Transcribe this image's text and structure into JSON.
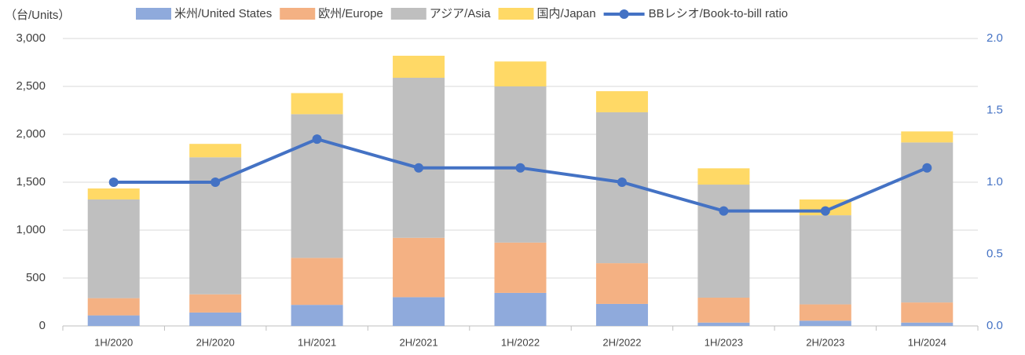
{
  "chart_data": {
    "type": "bar",
    "stacked": true,
    "y_label": "（台/Units）",
    "categories": [
      "1H/2020",
      "2H/2020",
      "1H/2021",
      "2H/2021",
      "1H/2022",
      "2H/2022",
      "1H/2023",
      "2H/2023",
      "1H/2024"
    ],
    "series": [
      {
        "name": "米州/United States",
        "color": "#8faadc",
        "values": [
          110,
          140,
          220,
          300,
          345,
          230,
          35,
          55,
          35
        ]
      },
      {
        "name": "欧州/Europe",
        "color": "#f4b183",
        "values": [
          180,
          190,
          490,
          620,
          525,
          425,
          260,
          170,
          210
        ]
      },
      {
        "name": "アジア/Asia",
        "color": "#bfbfbf",
        "values": [
          1030,
          1430,
          1500,
          1670,
          1630,
          1575,
          1180,
          930,
          1670
        ]
      },
      {
        "name": "国内/Japan",
        "color": "#ffd966",
        "values": [
          115,
          140,
          220,
          230,
          260,
          220,
          170,
          165,
          115
        ]
      },
      {
        "name": "BBレシオ/Book-to-bill ratio",
        "color": "#4472c4",
        "type": "line",
        "axis": "y2",
        "values": [
          1.0,
          1.0,
          1.3,
          1.1,
          1.1,
          1.0,
          0.8,
          0.8,
          1.1
        ]
      }
    ],
    "ylim": [
      0,
      3000
    ],
    "yticks": [
      0,
      500,
      {
        "value": 1000,
        "label": "1,000"
      },
      {
        "value": 1500,
        "label": "1,500"
      },
      {
        "value": 2000,
        "label": "2,000"
      },
      {
        "value": 2500,
        "label": "2,500"
      },
      {
        "value": 3000,
        "label": "3,000"
      }
    ],
    "y2lim": [
      0,
      2
    ],
    "y2ticks": [
      {
        "value": 0,
        "label": "0.0"
      },
      {
        "value": 0.5,
        "label": "0.5"
      },
      {
        "value": 1,
        "label": "1.0"
      },
      {
        "value": 1.5,
        "label": "1.5"
      },
      {
        "value": 2,
        "label": "2.0"
      }
    ],
    "grid": true,
    "legend": "top"
  }
}
